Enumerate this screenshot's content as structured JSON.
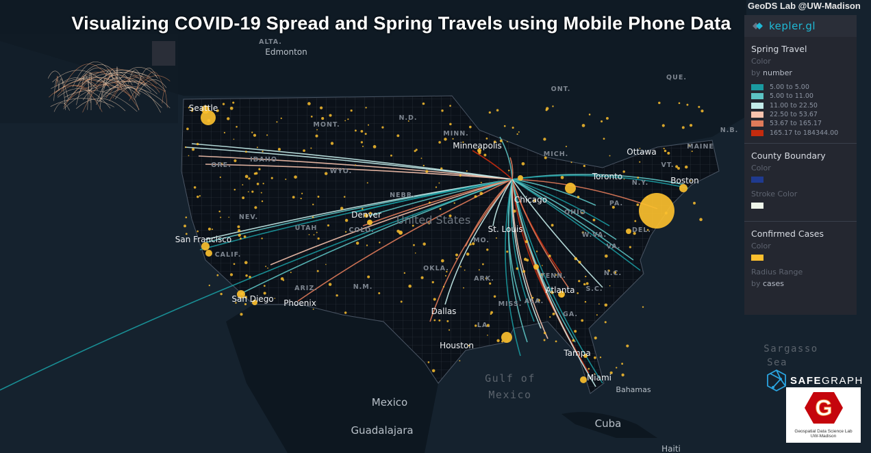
{
  "title": "Visualizing COVID-19 Spread and Spring Travels using Mobile Phone Data",
  "credit": "GeoDS Lab @UW-Madison",
  "panel": {
    "brand": "kepler.gl",
    "spring_travel": {
      "title": "Spring Travel",
      "color_label": "Color",
      "by_prefix": "by",
      "by_field": "number",
      "legend": [
        {
          "label": "5.00 to 5.00",
          "color": "#1a9aa0"
        },
        {
          "label": "5.00 to 11.00",
          "color": "#5cc3c3"
        },
        {
          "label": "11.00 to 22.50",
          "color": "#c4ecea"
        },
        {
          "label": "22.50 to 53.67",
          "color": "#f6c3ae"
        },
        {
          "label": "53.67 to 165.17",
          "color": "#e07b5a"
        },
        {
          "label": "165.17 to 184344.00",
          "color": "#c42b0e"
        }
      ]
    },
    "county_boundary": {
      "title": "County Boundary",
      "color_label": "Color",
      "color": "#1f3a8f",
      "stroke_label": "Stroke Color",
      "stroke_color": "#eef5ea"
    },
    "confirmed_cases": {
      "title": "Confirmed Cases",
      "color_label": "Color",
      "color": "#fbbf2e",
      "radius_label": "Radius Range",
      "by_prefix": "by",
      "by_field": "cases"
    }
  },
  "map": {
    "cities": [
      "Edmonton",
      "Seattle",
      "Minneapolis",
      "Ottawa",
      "Toronto",
      "Boston",
      "Chicago",
      "St. Louis",
      "Denver",
      "San Francisco",
      "San Diego",
      "Phoenix",
      "Dallas",
      "Houston",
      "Atlanta",
      "Tampa",
      "Miami",
      "Bahamas",
      "Cuba",
      "Mexico",
      "Guadalajara",
      "Haiti"
    ],
    "regions": [
      "ALTA.",
      "ONT.",
      "QUE.",
      "N.B.",
      "MAINE",
      "VT.",
      "N.Y.",
      "PA.",
      "MICH.",
      "MINN.",
      "N.D.",
      "MONT.",
      "IDAHO",
      "WYO.",
      "ORE.",
      "NEV.",
      "UTAH",
      "COLO.",
      "CALIF.",
      "ARIZ.",
      "N.M.",
      "OKLA.",
      "ARK.",
      "MO.",
      "MISS.",
      "ALA.",
      "GA.",
      "TENN.",
      "OHIO",
      "W.VA.",
      "VA.",
      "N.C.",
      "S.C.",
      "DEL.",
      "NEBR.",
      "LA."
    ],
    "country": "United States",
    "seas": [
      "Gulf of",
      "Mexico",
      "Sargasso",
      "Sea"
    ]
  },
  "logos": {
    "safegraph_a": "SAFE",
    "safegraph_b": "GRAPH",
    "uw_letter": "G",
    "uw_line1": "Geospatial Data Science Lab",
    "uw_line2": "UW-Madison"
  }
}
